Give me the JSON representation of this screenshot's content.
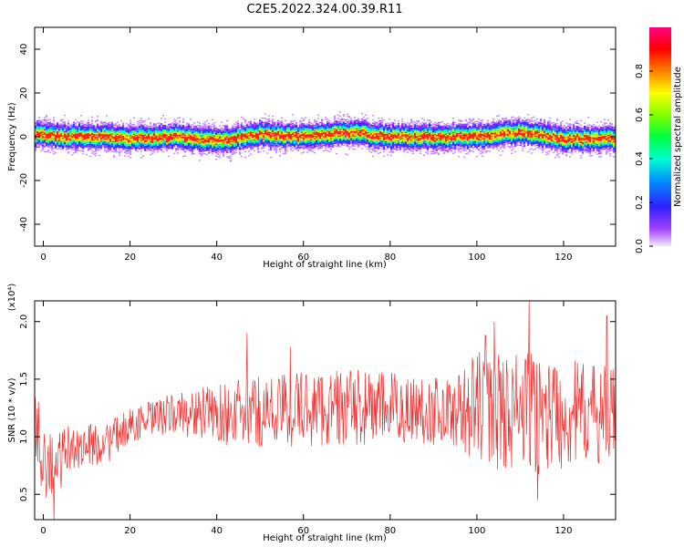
{
  "title": "C2E5.2022.324.00.39.R11",
  "colors": {
    "signal_line": "#ee3333",
    "axes": "#000000",
    "background": "#ffffff"
  },
  "chart_data": [
    {
      "type": "heatmap",
      "xlabel": "Height of straight line (km)",
      "ylabel": "Frequency (Hz)",
      "xlim": [
        -2,
        132
      ],
      "ylim": [
        -50,
        50
      ],
      "xticks": [
        0,
        20,
        40,
        60,
        80,
        100,
        120
      ],
      "yticks": [
        -40,
        -20,
        0,
        20,
        40
      ],
      "colorbar": {
        "label": "Normalized spectral amplitude",
        "range": [
          0.0,
          1.0
        ],
        "ticks": [
          0.0,
          0.2,
          0.4,
          0.6,
          0.8
        ],
        "colormap": "rainbow (violet-blue-cyan-green-yellow-red-magenta)"
      },
      "ridge_center_hz": [
        [
          -2,
          1
        ],
        [
          5,
          0
        ],
        [
          15,
          0
        ],
        [
          20,
          -1
        ],
        [
          30,
          0
        ],
        [
          40,
          -2
        ],
        [
          50,
          1
        ],
        [
          60,
          0
        ],
        [
          70,
          2
        ],
        [
          80,
          0
        ],
        [
          90,
          0
        ],
        [
          100,
          0
        ],
        [
          110,
          2
        ],
        [
          120,
          -1
        ],
        [
          132,
          -1
        ]
      ],
      "ridge_halfwidth_hz": 6
    },
    {
      "type": "line",
      "xlabel": "Height of straight line (km)",
      "ylabel": "SNR (10 * v/v)",
      "yscale_note": "(x10⁴)",
      "xlim": [
        -2,
        132
      ],
      "ylim": [
        0.28,
        2.18
      ],
      "xticks": [
        0,
        20,
        40,
        60,
        80,
        100,
        120
      ],
      "yticks": [
        0.5,
        1.0,
        1.5,
        2.0
      ],
      "series": [
        {
          "color": "#ee3333",
          "envelope": [
            {
              "x": -2,
              "mean": 1.05,
              "spread": 0.35
            },
            {
              "x": 2,
              "mean": 0.7,
              "spread": 0.35
            },
            {
              "x": 6,
              "mean": 0.9,
              "spread": 0.2
            },
            {
              "x": 15,
              "mean": 0.95,
              "spread": 0.18
            },
            {
              "x": 20,
              "mean": 1.1,
              "spread": 0.15
            },
            {
              "x": 30,
              "mean": 1.2,
              "spread": 0.18
            },
            {
              "x": 45,
              "mean": 1.2,
              "spread": 0.3
            },
            {
              "x": 60,
              "mean": 1.25,
              "spread": 0.35
            },
            {
              "x": 80,
              "mean": 1.25,
              "spread": 0.32
            },
            {
              "x": 95,
              "mean": 1.22,
              "spread": 0.3
            },
            {
              "x": 100,
              "mean": 1.25,
              "spread": 0.5
            },
            {
              "x": 112,
              "mean": 1.2,
              "spread": 0.55
            },
            {
              "x": 125,
              "mean": 1.2,
              "spread": 0.45
            },
            {
              "x": 132,
              "mean": 1.2,
              "spread": 0.4
            }
          ],
          "peaks": [
            {
              "x": 2.5,
              "y": 0.28
            },
            {
              "x": 47,
              "y": 1.9
            },
            {
              "x": 57,
              "y": 1.78
            },
            {
              "x": 102,
              "y": 1.88
            },
            {
              "x": 104,
              "y": 2.0
            },
            {
              "x": 112,
              "y": 2.18
            },
            {
              "x": 114,
              "y": 2.18
            },
            {
              "x": 130,
              "y": 2.05
            },
            {
              "x": 114,
              "y": 0.45
            }
          ]
        }
      ]
    }
  ]
}
